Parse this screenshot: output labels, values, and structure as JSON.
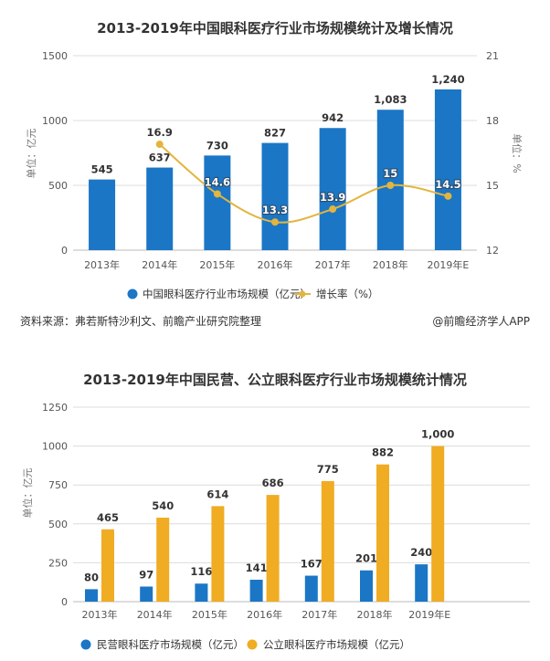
{
  "colors": {
    "blue": "#1b76c6",
    "orange": "#f0ac22",
    "line": "#e3b53e",
    "grid": "#dcdcdc",
    "axis_text": "#555555"
  },
  "chart_data": [
    {
      "type": "bar+line",
      "title": "2013-2019年中国眼科医疗行业市场规模统计及增长情况",
      "categories": [
        "2013年",
        "2014年",
        "2015年",
        "2016年",
        "2017年",
        "2018年",
        "2019年E"
      ],
      "ylabel": "单位：亿元",
      "y2label": "单位：%",
      "ylim": [
        0,
        1500
      ],
      "yticks": [
        0,
        500,
        1000,
        1500
      ],
      "y2lim": [
        12,
        21
      ],
      "y2ticks": [
        12,
        15,
        18,
        21
      ],
      "grid": true,
      "legend_position": "bottom",
      "series": [
        {
          "name": "中国眼科医疗行业市场规模（亿元）",
          "kind": "bar",
          "values": [
            545,
            637,
            730,
            827,
            942,
            1083,
            1240
          ],
          "labels": [
            "545",
            "637",
            "730",
            "827",
            "942",
            "1,083",
            "1,240"
          ]
        },
        {
          "name": "增长率（%）",
          "kind": "line",
          "axis": "right",
          "values": [
            null,
            16.9,
            14.6,
            13.3,
            13.9,
            15,
            14.5
          ],
          "labels": [
            "",
            "16.9",
            "14.6",
            "13.3",
            "13.9",
            "15",
            "14.5"
          ]
        }
      ]
    },
    {
      "type": "bar",
      "title": "2013-2019年中国民营、公立眼科医疗行业市场规模统计情况",
      "categories": [
        "2013年",
        "2014年",
        "2015年",
        "2016年",
        "2017年",
        "2018年",
        "2019年E"
      ],
      "ylabel": "单位：亿元",
      "ylim": [
        0,
        1250
      ],
      "yticks": [
        0,
        250,
        500,
        750,
        1000,
        1250
      ],
      "grid": true,
      "legend_position": "bottom",
      "series": [
        {
          "name": "民营眼科医疗市场规模（亿元）",
          "values": [
            80,
            97,
            116,
            141,
            167,
            201,
            240
          ],
          "labels": [
            "80",
            "97",
            "116",
            "141",
            "167",
            "201",
            "240"
          ]
        },
        {
          "name": "公立眼科医疗市场规模（亿元）",
          "values": [
            465,
            540,
            614,
            686,
            775,
            882,
            1000
          ],
          "labels": [
            "465",
            "540",
            "614",
            "686",
            "775",
            "882",
            "1,000"
          ]
        }
      ]
    }
  ],
  "footer": {
    "source": "资料来源：弗若斯特沙利文、前瞻产业研究院整理",
    "credit": "@前瞻经济学人APP"
  }
}
